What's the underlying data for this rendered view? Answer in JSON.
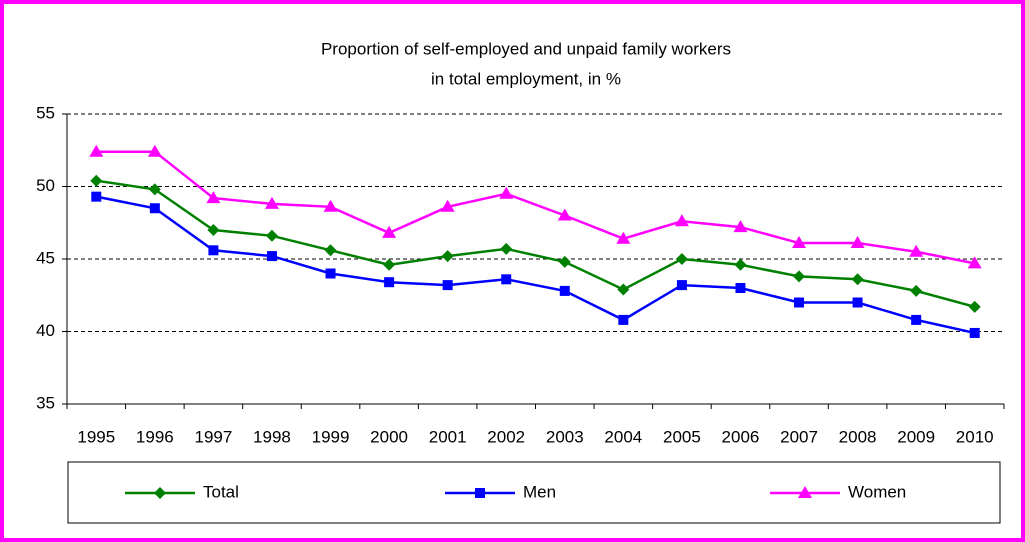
{
  "chart_data": {
    "type": "line",
    "title": [
      "Proportion of self-employed and unpaid family workers",
      "in total employment, in %"
    ],
    "categories": [
      "1995",
      "1996",
      "1997",
      "1998",
      "1999",
      "2000",
      "2001",
      "2002",
      "2003",
      "2004",
      "2005",
      "2006",
      "2007",
      "2008",
      "2009",
      "2010"
    ],
    "series": [
      {
        "name": "Total",
        "color": "#008000",
        "marker": "diamond",
        "values": [
          50.4,
          49.8,
          47.0,
          46.6,
          45.6,
          44.6,
          45.2,
          45.7,
          44.8,
          42.9,
          45.0,
          44.6,
          43.8,
          43.6,
          42.8,
          41.7
        ]
      },
      {
        "name": "Men",
        "color": "#0000ff",
        "marker": "square",
        "values": [
          49.3,
          48.5,
          45.6,
          45.2,
          44.0,
          43.4,
          43.2,
          43.6,
          42.8,
          40.8,
          43.2,
          43.0,
          42.0,
          42.0,
          40.8,
          39.9
        ]
      },
      {
        "name": "Women",
        "color": "#ff00ff",
        "marker": "triangle",
        "values": [
          52.4,
          52.4,
          49.2,
          48.8,
          48.6,
          46.8,
          48.6,
          49.5,
          48.0,
          46.4,
          47.6,
          47.2,
          46.1,
          46.1,
          45.5,
          44.7
        ]
      }
    ],
    "ylim": [
      35,
      55
    ],
    "yticks": [
      35,
      40,
      45,
      50,
      55
    ],
    "grid": true
  }
}
